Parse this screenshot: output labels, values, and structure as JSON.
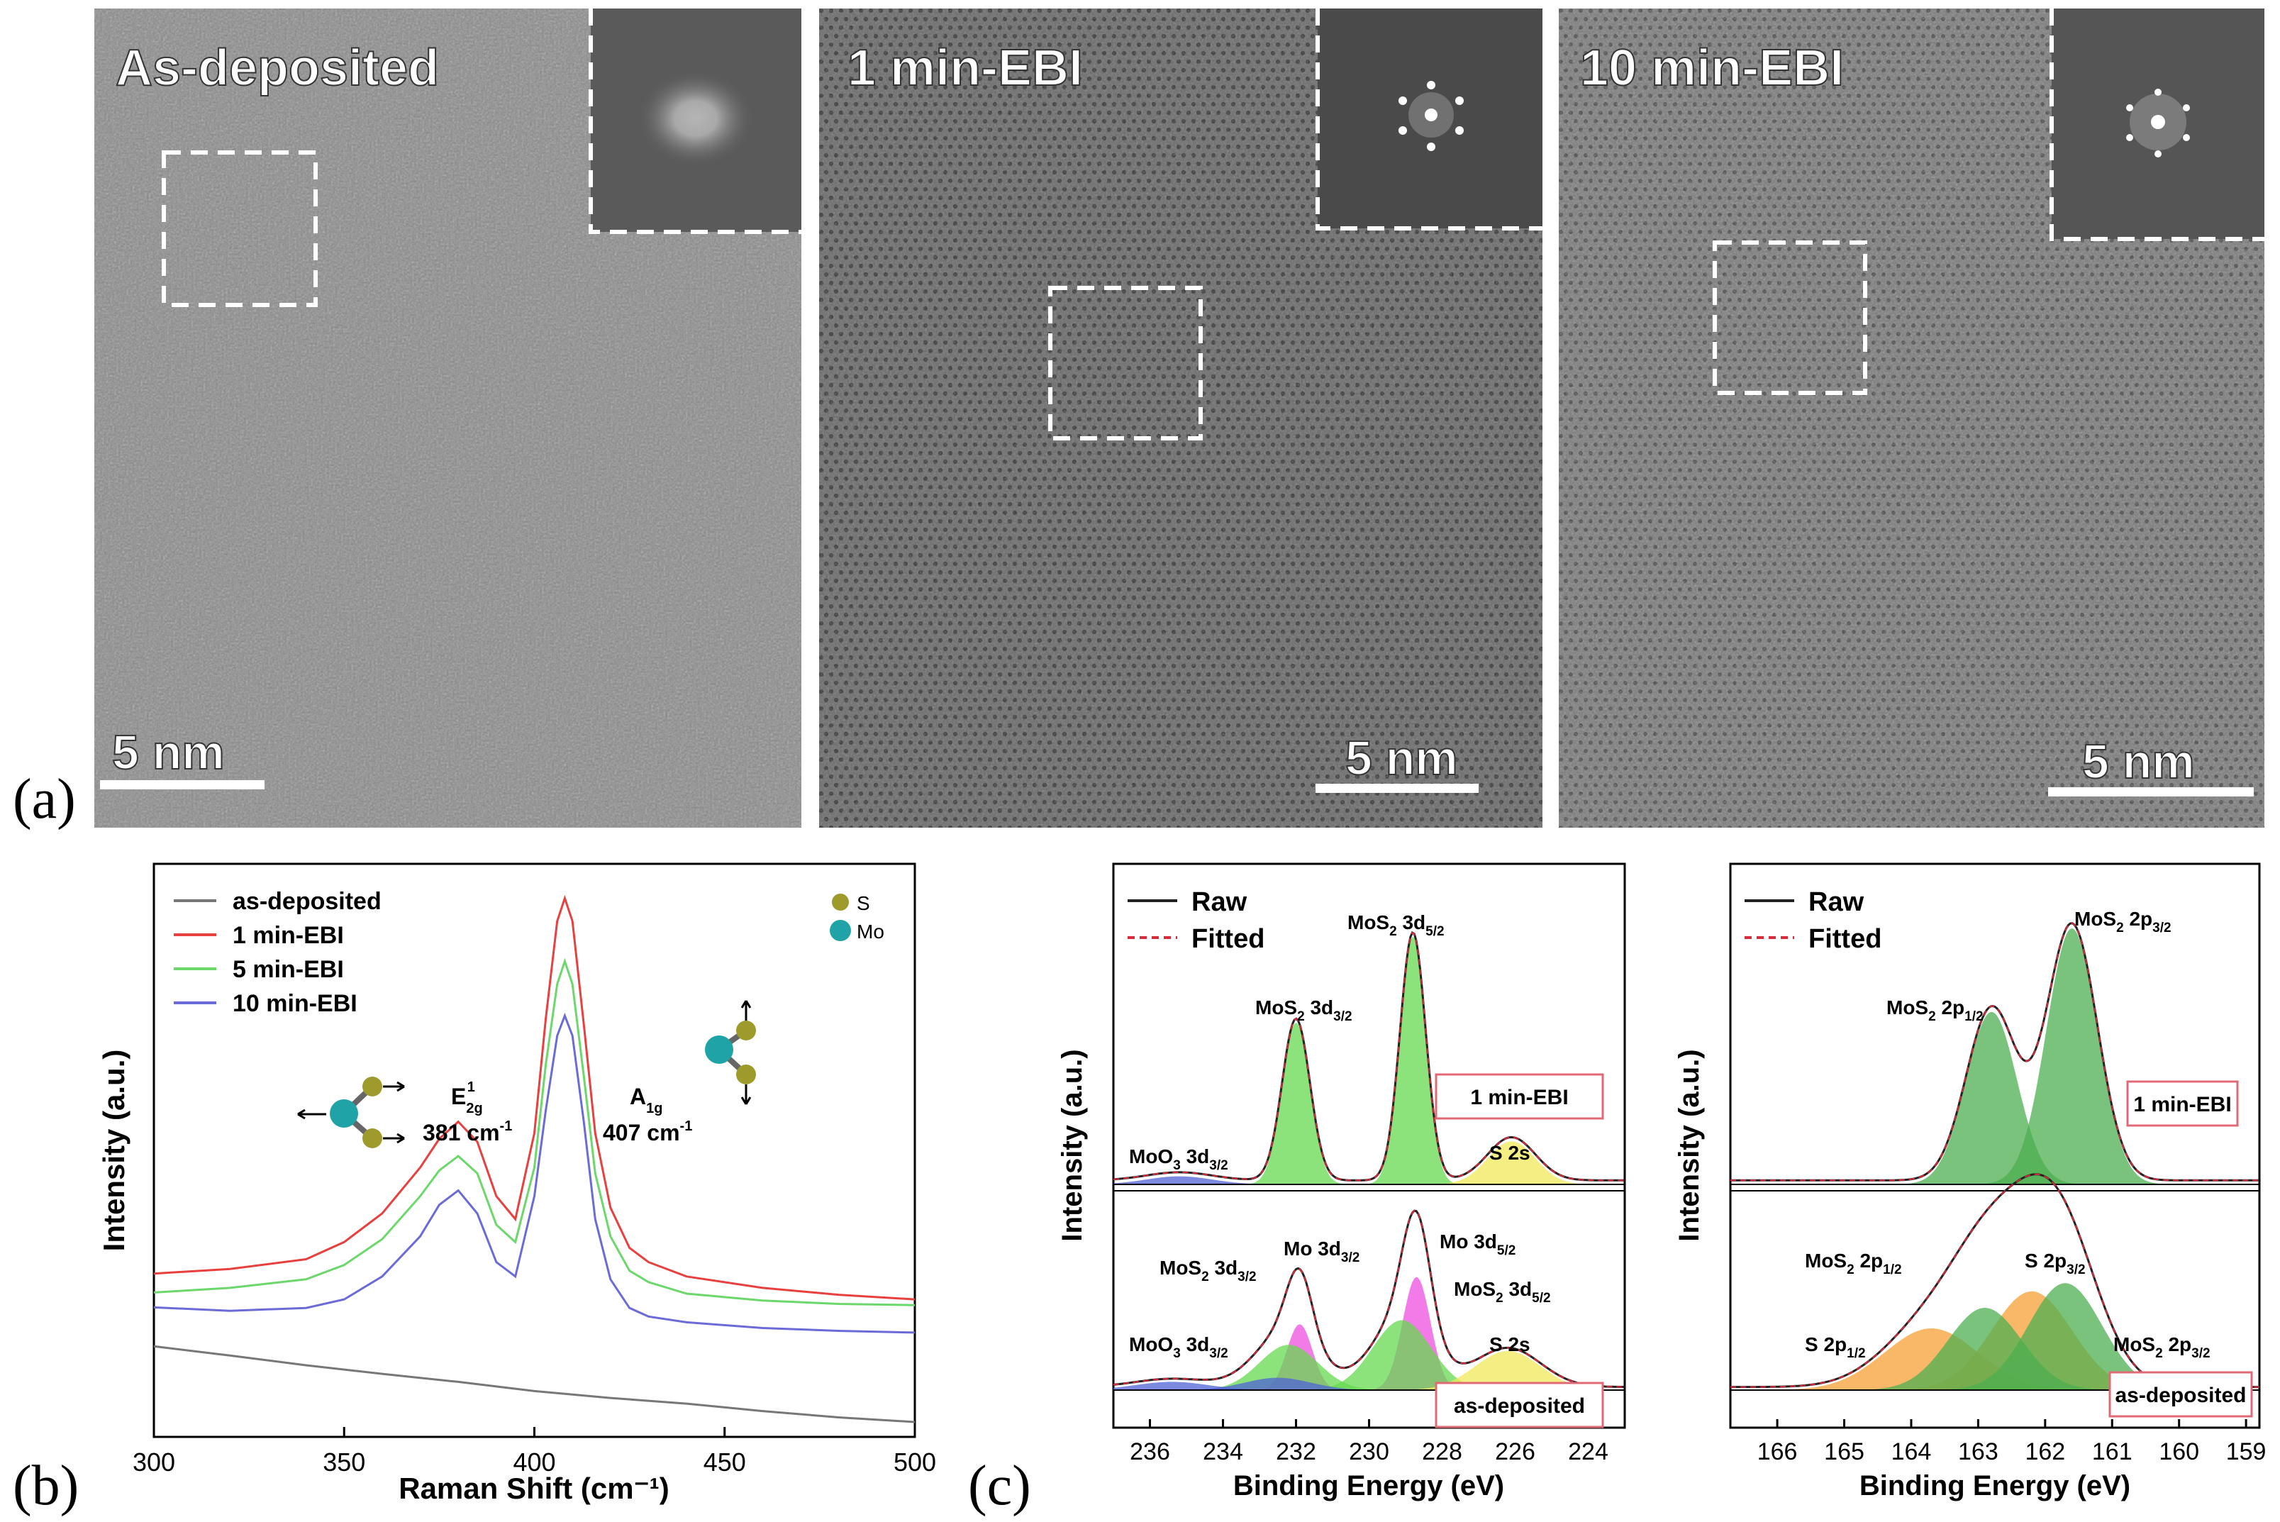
{
  "figure": {
    "panel_a": {
      "label": "(a)",
      "images": [
        {
          "title": "As-deposited",
          "scale_bar": "5 nm",
          "base": "#8c8c8c",
          "fft": "diffuse-ring"
        },
        {
          "title": "1 min-EBI",
          "scale_bar": "5 nm",
          "base": "#6c6c6c",
          "fft": "hexagonal-spots"
        },
        {
          "title": "10 min-EBI",
          "scale_bar": "5 nm",
          "base": "#777777",
          "fft": "hexagonal-spots"
        }
      ]
    },
    "panel_b": {
      "label": "(b)"
    },
    "panel_c": {
      "label": "(c)"
    }
  },
  "chart_data": [
    {
      "id": "raman",
      "type": "line",
      "xlabel": "Raman Shift (cm⁻¹)",
      "ylabel": "Intensity (a.u.)",
      "xlim": [
        300,
        500
      ],
      "xticks": [
        "300",
        "350",
        "400",
        "450",
        "500"
      ],
      "ylim": [
        0,
        100
      ],
      "legend_position": "top-left",
      "series": [
        {
          "name": "as-deposited",
          "color": "#777777",
          "x": [
            300,
            320,
            340,
            360,
            380,
            400,
            420,
            440,
            460,
            480,
            500
          ],
          "y": [
            15.8,
            14.2,
            12.5,
            11.0,
            9.6,
            8.0,
            6.8,
            5.8,
            4.5,
            3.4,
            2.6
          ]
        },
        {
          "name": "1 min-EBI",
          "color": "#e8403f",
          "x": [
            300,
            320,
            340,
            350,
            360,
            370,
            375,
            380,
            385,
            390,
            395,
            400,
            403,
            406,
            408,
            410,
            413,
            416,
            420,
            425,
            430,
            440,
            460,
            480,
            500
          ],
          "y": [
            28.5,
            29.3,
            31.0,
            34.0,
            39.0,
            47.0,
            52.0,
            55.0,
            51.5,
            42.0,
            38.0,
            53.0,
            73.0,
            90.0,
            94.0,
            90.0,
            72.0,
            53.0,
            40.0,
            33.0,
            30.5,
            28.0,
            26.0,
            24.8,
            24.0
          ]
        },
        {
          "name": "5 min-EBI",
          "color": "#6cd86c",
          "x": [
            300,
            320,
            340,
            350,
            360,
            370,
            375,
            380,
            385,
            390,
            395,
            400,
            403,
            406,
            408,
            410,
            413,
            416,
            420,
            425,
            430,
            440,
            460,
            480,
            500
          ],
          "y": [
            25.2,
            26.0,
            27.5,
            30.0,
            34.5,
            42.0,
            46.5,
            49.0,
            46.0,
            37.0,
            34.0,
            47.0,
            65.0,
            79.0,
            83.0,
            79.0,
            63.0,
            46.0,
            35.0,
            29.0,
            27.0,
            25.0,
            23.8,
            23.2,
            23.0
          ]
        },
        {
          "name": "10 min-EBI",
          "color": "#6b6bd8",
          "x": [
            300,
            320,
            340,
            350,
            360,
            370,
            375,
            380,
            385,
            390,
            395,
            400,
            403,
            406,
            408,
            410,
            413,
            416,
            420,
            425,
            430,
            440,
            460,
            480,
            500
          ],
          "y": [
            22.6,
            22.0,
            22.5,
            24.0,
            28.0,
            35.0,
            40.5,
            43.0,
            39.0,
            30.5,
            28.0,
            42.0,
            57.0,
            70.0,
            73.5,
            70.0,
            55.0,
            38.0,
            27.5,
            22.5,
            21.0,
            20.0,
            19.0,
            18.5,
            18.2
          ]
        }
      ],
      "annotations": {
        "e2g_label": "E",
        "e2g_sub": "2g",
        "e2g_sup": "1",
        "e2g_value": "381 cm",
        "a1g_label": "A",
        "a1g_sub": "1g",
        "a1g_value": "407 cm",
        "unit_sup": "-1",
        "atoms": [
          {
            "symbol": "S",
            "color": "#9e9a2b"
          },
          {
            "symbol": "Mo",
            "color": "#1fa3a7"
          }
        ]
      }
    },
    {
      "id": "xps_mo3d",
      "type": "area",
      "xlabel": "Binding Energy (eV)",
      "ylabel": "Intensity (a.u.)",
      "xlim": [
        237,
        223
      ],
      "xticks": [
        "236",
        "234",
        "232",
        "230",
        "228",
        "226",
        "224"
      ],
      "legend": [
        "Raw",
        "Fitted"
      ],
      "legend_position": "top-left",
      "subpanels": [
        {
          "sample": "1 min-EBI",
          "labels": [
            {
              "main": "MoS",
              "sub1": "2",
              "mid": " 3d",
              "sub2": "5/2"
            },
            {
              "main": "MoS",
              "sub1": "2",
              "mid": " 3d",
              "sub2": "3/2"
            },
            {
              "main": "MoO",
              "sub1": "3",
              "mid": " 3d",
              "sub2": "3/2"
            },
            {
              "main": "S 2s",
              "sub1": "",
              "mid": "",
              "sub2": ""
            }
          ],
          "peaks": [
            {
              "name": "MoS2 3d5/2",
              "center": 228.8,
              "height": 92,
              "width": 0.35,
              "color": "#66d94f"
            },
            {
              "name": "MoS2 3d3/2",
              "center": 232.0,
              "height": 60,
              "width": 0.38,
              "color": "#66d94f"
            },
            {
              "name": "S 2s",
              "center": 226.1,
              "height": 16,
              "width": 0.65,
              "color": "#f0e85a"
            },
            {
              "name": "MoO3 3d3/2",
              "center": 235.2,
              "height": 3,
              "width": 0.9,
              "color": "#4f63d6"
            }
          ]
        },
        {
          "sample": "as-deposited",
          "labels": [
            {
              "main": "MoS",
              "sub1": "2",
              "mid": " 3d",
              "sub2": "3/2"
            },
            {
              "main": "Mo 3d",
              "sub1": "",
              "mid": "",
              "sub2": "3/2"
            },
            {
              "main": "Mo 3d",
              "sub1": "",
              "mid": "",
              "sub2": "5/2"
            },
            {
              "main": "MoS",
              "sub1": "2",
              "mid": " 3d",
              "sub2": "5/2"
            },
            {
              "main": "MoO",
              "sub1": "3",
              "mid": " 3d",
              "sub2": "3/2"
            },
            {
              "main": "S 2s",
              "sub1": "",
              "mid": "",
              "sub2": ""
            }
          ],
          "peaks": [
            {
              "name": "Mo 3d3/2",
              "center": 231.9,
              "height": 32,
              "width": 0.35,
              "color": "#ee4fe0"
            },
            {
              "name": "Mo 3d5/2",
              "center": 228.7,
              "height": 55,
              "width": 0.38,
              "color": "#ee4fe0"
            },
            {
              "name": "MoS2 3d3/2",
              "center": 232.2,
              "height": 22,
              "width": 0.8,
              "color": "#66d94f"
            },
            {
              "name": "MoS2 3d5/2",
              "center": 229.1,
              "height": 34,
              "width": 0.8,
              "color": "#66d94f"
            },
            {
              "name": "S 2s",
              "center": 226.2,
              "height": 19,
              "width": 0.9,
              "color": "#f0e85a"
            },
            {
              "name": "MoO3 3d3/2",
              "center": 235.4,
              "height": 4,
              "width": 1.0,
              "color": "#4f63d6"
            },
            {
              "name": "MoO3 3d5/2",
              "center": 232.5,
              "height": 6,
              "width": 0.9,
              "color": "#4f63d6"
            }
          ]
        }
      ]
    },
    {
      "id": "xps_s2p",
      "type": "area",
      "xlabel": "Binding Energy (eV)",
      "ylabel": "Intensity (a.u.)",
      "xlim": [
        166.7,
        158.8
      ],
      "xticks": [
        "166",
        "165",
        "164",
        "163",
        "162",
        "161",
        "160",
        "159"
      ],
      "legend": [
        "Raw",
        "Fitted"
      ],
      "legend_position": "top-left",
      "subpanels": [
        {
          "sample": "1 min-EBI",
          "labels": [
            {
              "main": "MoS",
              "sub1": "2",
              "mid": " 2p",
              "sub2": "3/2"
            },
            {
              "main": "MoS",
              "sub1": "2",
              "mid": " 2p",
              "sub2": "1/2"
            }
          ],
          "peaks": [
            {
              "name": "MoS2 2p3/2",
              "center": 161.6,
              "height": 95,
              "width": 0.38,
              "color": "#4caf50"
            },
            {
              "name": "MoS2 2p1/2",
              "center": 162.8,
              "height": 64,
              "width": 0.38,
              "color": "#4caf50"
            }
          ]
        },
        {
          "sample": "as-deposited",
          "labels": [
            {
              "main": "MoS",
              "sub1": "2",
              "mid": " 2p",
              "sub2": "1/2"
            },
            {
              "main": "S 2p",
              "sub1": "",
              "mid": "",
              "sub2": "3/2"
            },
            {
              "main": "S 2p",
              "sub1": "",
              "mid": "",
              "sub2": "1/2"
            },
            {
              "main": "MoS",
              "sub1": "2",
              "mid": " 2p",
              "sub2": "3/2"
            }
          ],
          "peaks": [
            {
              "name": "S 2p3/2",
              "center": 162.2,
              "height": 48,
              "width": 0.6,
              "color": "#f7a035"
            },
            {
              "name": "S 2p1/2",
              "center": 163.7,
              "height": 30,
              "width": 0.7,
              "color": "#f7a035"
            },
            {
              "name": "MoS2 2p3/2",
              "center": 161.7,
              "height": 52,
              "width": 0.55,
              "color": "#4caf50"
            },
            {
              "name": "MoS2 2p1/2",
              "center": 162.9,
              "height": 40,
              "width": 0.55,
              "color": "#4caf50"
            }
          ]
        }
      ]
    }
  ]
}
